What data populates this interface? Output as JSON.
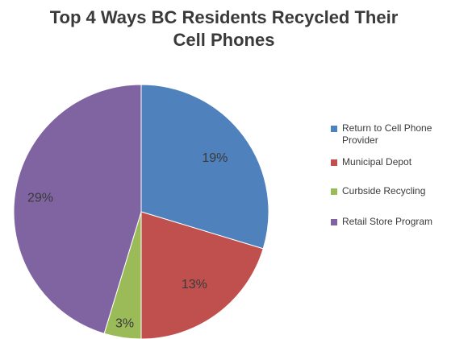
{
  "chart_data": {
    "type": "pie",
    "title_lines": [
      "Top 4 Ways BC Residents Recycled Their",
      "Cell Phones"
    ],
    "categories": [
      "Return to Cell Phone Provider",
      "Municipal Depot",
      "Curbside Recycling",
      "Retail Store Program"
    ],
    "values": [
      19,
      13,
      3,
      29
    ],
    "data_labels": [
      "19%",
      "13%",
      "3%",
      "29%"
    ],
    "colors": [
      "#4f81bd",
      "#c0504d",
      "#9bbb59",
      "#8064a2"
    ],
    "legend_position": "right"
  }
}
